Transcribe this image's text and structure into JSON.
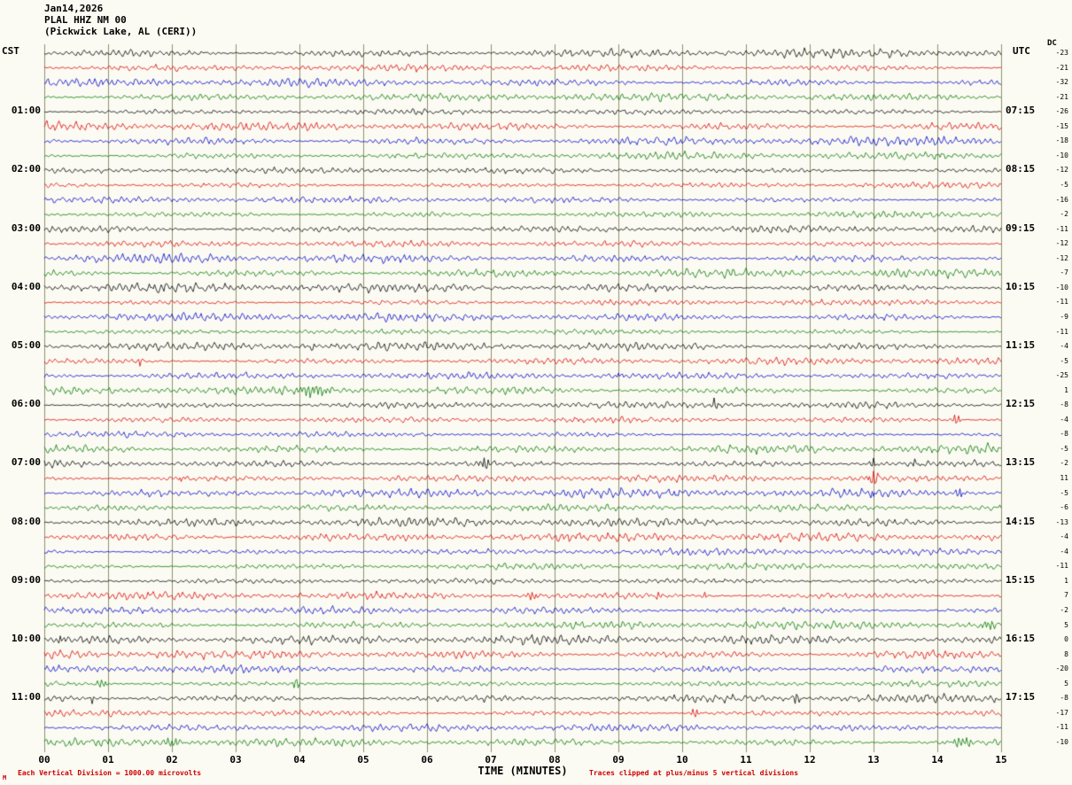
{
  "header": {
    "date": "Jan14,2026",
    "station": "PLAL HHZ NM 00",
    "location": "(Pickwick Lake, AL (CERI))"
  },
  "axes": {
    "left_title": "CST",
    "right_title": "UTC",
    "dc_title": "DC",
    "bottom_title": "TIME (MINUTES)",
    "minute_labels": [
      "00",
      "01",
      "02",
      "03",
      "04",
      "05",
      "06",
      "07",
      "08",
      "09",
      "10",
      "11",
      "12",
      "13",
      "14",
      "15"
    ]
  },
  "footer": {
    "left_note": "Each Vertical Division = 1000.00 microvolts",
    "right_note": "Traces clipped at plus/minus 5 vertical divisions",
    "corner_mark": "M"
  },
  "chart_data": {
    "type": "seismogram-helicorder",
    "title": "PLAL HHZ NM 00 (Pickwick Lake, AL (CERI)) Jan14,2026",
    "xlabel": "TIME (MINUTES)",
    "x_range": [
      0,
      15
    ],
    "minutes_per_line": 15,
    "traces_per_hour": 4,
    "left_timezone": "CST",
    "right_timezone": "UTC",
    "vertical_division_microvolts": 1000.0,
    "clip_divisions": 5,
    "grid": true,
    "grid_color": "#8f8f72",
    "trace_color_cycle": [
      "black",
      "red",
      "blue",
      "green"
    ],
    "palette": {
      "black": "#000000",
      "red": "#dd0000",
      "blue": "#0000cc",
      "green": "#007700"
    },
    "rows": [
      {
        "cst": "",
        "utc": "",
        "color": "black",
        "dc": -23
      },
      {
        "cst": "",
        "utc": "",
        "color": "red",
        "dc": -21
      },
      {
        "cst": "",
        "utc": "",
        "color": "blue",
        "dc": -32
      },
      {
        "cst": "",
        "utc": "",
        "color": "green",
        "dc": -21
      },
      {
        "cst": "01:00",
        "utc": "07:15",
        "color": "black",
        "dc": -26
      },
      {
        "cst": "",
        "utc": "",
        "color": "red",
        "dc": -15
      },
      {
        "cst": "",
        "utc": "",
        "color": "blue",
        "dc": -18
      },
      {
        "cst": "",
        "utc": "",
        "color": "green",
        "dc": -10
      },
      {
        "cst": "02:00",
        "utc": "08:15",
        "color": "black",
        "dc": -12
      },
      {
        "cst": "",
        "utc": "",
        "color": "red",
        "dc": -5
      },
      {
        "cst": "",
        "utc": "",
        "color": "blue",
        "dc": -16
      },
      {
        "cst": "",
        "utc": "",
        "color": "green",
        "dc": -2
      },
      {
        "cst": "03:00",
        "utc": "09:15",
        "color": "black",
        "dc": -11
      },
      {
        "cst": "",
        "utc": "",
        "color": "red",
        "dc": -12
      },
      {
        "cst": "",
        "utc": "",
        "color": "blue",
        "dc": -12
      },
      {
        "cst": "",
        "utc": "",
        "color": "green",
        "dc": -7
      },
      {
        "cst": "04:00",
        "utc": "10:15",
        "color": "black",
        "dc": -10
      },
      {
        "cst": "",
        "utc": "",
        "color": "red",
        "dc": -11
      },
      {
        "cst": "",
        "utc": "",
        "color": "blue",
        "dc": -9
      },
      {
        "cst": "",
        "utc": "",
        "color": "green",
        "dc": -11
      },
      {
        "cst": "05:00",
        "utc": "11:15",
        "color": "black",
        "dc": -4
      },
      {
        "cst": "",
        "utc": "",
        "color": "red",
        "dc": -5
      },
      {
        "cst": "",
        "utc": "",
        "color": "blue",
        "dc": -25
      },
      {
        "cst": "",
        "utc": "",
        "color": "green",
        "dc": 1
      },
      {
        "cst": "06:00",
        "utc": "12:15",
        "color": "black",
        "dc": -8
      },
      {
        "cst": "",
        "utc": "",
        "color": "red",
        "dc": -4
      },
      {
        "cst": "",
        "utc": "",
        "color": "blue",
        "dc": -8
      },
      {
        "cst": "",
        "utc": "",
        "color": "green",
        "dc": -5
      },
      {
        "cst": "07:00",
        "utc": "13:15",
        "color": "black",
        "dc": -2
      },
      {
        "cst": "",
        "utc": "",
        "color": "red",
        "dc": 11
      },
      {
        "cst": "",
        "utc": "",
        "color": "blue",
        "dc": -5
      },
      {
        "cst": "",
        "utc": "",
        "color": "green",
        "dc": -6
      },
      {
        "cst": "08:00",
        "utc": "14:15",
        "color": "black",
        "dc": -13
      },
      {
        "cst": "",
        "utc": "",
        "color": "red",
        "dc": -4
      },
      {
        "cst": "",
        "utc": "",
        "color": "blue",
        "dc": -4
      },
      {
        "cst": "",
        "utc": "",
        "color": "green",
        "dc": -11
      },
      {
        "cst": "09:00",
        "utc": "15:15",
        "color": "black",
        "dc": 1
      },
      {
        "cst": "",
        "utc": "",
        "color": "red",
        "dc": 7
      },
      {
        "cst": "",
        "utc": "",
        "color": "blue",
        "dc": -2
      },
      {
        "cst": "",
        "utc": "",
        "color": "green",
        "dc": 5
      },
      {
        "cst": "10:00",
        "utc": "16:15",
        "color": "black",
        "dc": 0
      },
      {
        "cst": "",
        "utc": "",
        "color": "red",
        "dc": 8
      },
      {
        "cst": "",
        "utc": "",
        "color": "blue",
        "dc": -20
      },
      {
        "cst": "",
        "utc": "",
        "color": "green",
        "dc": 5
      },
      {
        "cst": "11:00",
        "utc": "17:15",
        "color": "black",
        "dc": -8
      },
      {
        "cst": "",
        "utc": "",
        "color": "red",
        "dc": -17
      },
      {
        "cst": "",
        "utc": "",
        "color": "blue",
        "dc": -11
      },
      {
        "cst": "",
        "utc": "",
        "color": "green",
        "dc": -10
      }
    ],
    "events": [
      {
        "row": 20,
        "minute": 4.2,
        "amp": -4,
        "width": 3
      },
      {
        "row": 21,
        "minute": 1.5,
        "amp": -4.5,
        "width": 3
      },
      {
        "row": 22,
        "minute": 9.0,
        "amp": 4,
        "width": 3
      },
      {
        "row": 23,
        "minute": 4.2,
        "amp": 6,
        "width": 18
      },
      {
        "row": 24,
        "minute": 10.5,
        "amp": 7,
        "width": 4
      },
      {
        "row": 25,
        "minute": 14.3,
        "amp": -7,
        "width": 4
      },
      {
        "row": 28,
        "minute": 6.9,
        "amp": 8,
        "width": 5
      },
      {
        "row": 28,
        "minute": 13.0,
        "amp": 6,
        "width": 4
      },
      {
        "row": 28,
        "minute": 13.65,
        "amp": 5,
        "width": 3
      },
      {
        "row": 29,
        "minute": 2.15,
        "amp": -5,
        "width": 3
      },
      {
        "row": 29,
        "minute": 13.0,
        "amp": 9,
        "width": 5
      },
      {
        "row": 30,
        "minute": 13.0,
        "amp": -4,
        "width": 3
      },
      {
        "row": 30,
        "minute": 14.35,
        "amp": 6,
        "width": 4
      },
      {
        "row": 37,
        "minute": 7.65,
        "amp": 6,
        "width": 5
      },
      {
        "row": 37,
        "minute": 9.6,
        "amp": -4,
        "width": 3
      },
      {
        "row": 37,
        "minute": 10.35,
        "amp": 4,
        "width": 3
      },
      {
        "row": 39,
        "minute": 14.8,
        "amp": 5,
        "width": 8
      },
      {
        "row": 40,
        "minute": 0.25,
        "amp": 6,
        "width": 4
      },
      {
        "row": 43,
        "minute": 0.9,
        "amp": 5,
        "width": 6
      },
      {
        "row": 43,
        "minute": 3.95,
        "amp": 6,
        "width": 4
      },
      {
        "row": 44,
        "minute": 0.75,
        "amp": -4,
        "width": 3
      },
      {
        "row": 44,
        "minute": 11.8,
        "amp": 6,
        "width": 4
      },
      {
        "row": 45,
        "minute": 10.2,
        "amp": -6,
        "width": 4
      },
      {
        "row": 47,
        "minute": 2.0,
        "amp": 5,
        "width": 9
      },
      {
        "row": 47,
        "minute": 14.4,
        "amp": 6,
        "width": 11
      }
    ]
  }
}
